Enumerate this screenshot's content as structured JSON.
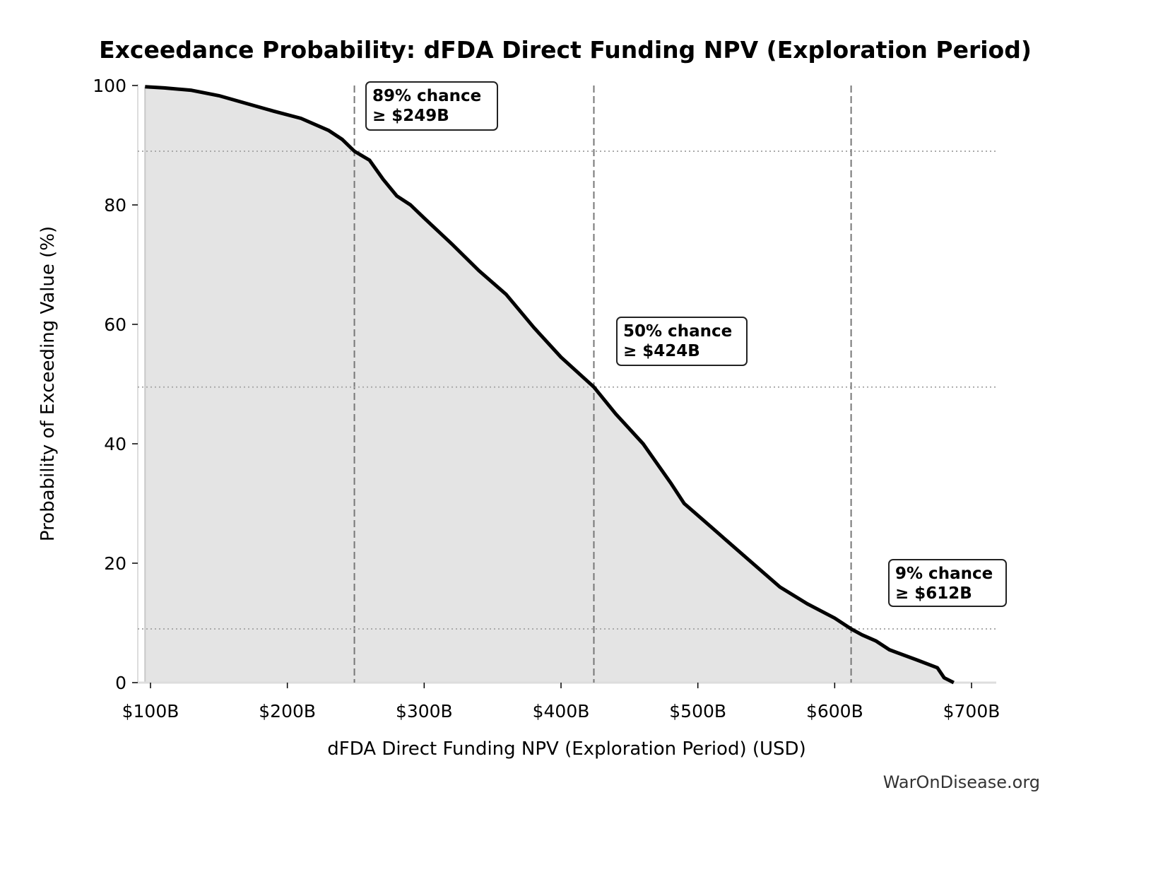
{
  "chart_data": {
    "type": "area",
    "title": "Exceedance Probability: dFDA Direct Funding NPV (Exploration Period)",
    "xlabel": "dFDA Direct Funding NPV (Exploration Period) (USD)",
    "ylabel": "Probability of Exceeding Value (%)",
    "xlim": [
      95,
      718
    ],
    "ylim": [
      0,
      100
    ],
    "x_unit": "billions USD",
    "x_ticks": [
      100,
      200,
      300,
      400,
      500,
      600,
      700
    ],
    "x_tick_labels": [
      "$100B",
      "$200B",
      "$300B",
      "$400B",
      "$500B",
      "$600B",
      "$700B"
    ],
    "y_ticks": [
      0,
      20,
      40,
      60,
      80,
      100
    ],
    "y_tick_labels": [
      "0",
      "20",
      "40",
      "60",
      "80",
      "100"
    ],
    "grid": false,
    "x": [
      96,
      110,
      130,
      150,
      170,
      190,
      210,
      230,
      240,
      249,
      260,
      270,
      280,
      290,
      300,
      320,
      340,
      360,
      380,
      400,
      424,
      440,
      460,
      480,
      490,
      500,
      520,
      540,
      560,
      580,
      600,
      612,
      620,
      630,
      640,
      660,
      675,
      680,
      687
    ],
    "y": [
      99.8,
      99.6,
      99.2,
      98.3,
      97.0,
      95.7,
      94.5,
      92.5,
      91.0,
      89.0,
      87.5,
      84.3,
      81.5,
      80.0,
      77.8,
      73.5,
      69.0,
      65.0,
      59.5,
      54.5,
      49.5,
      45.0,
      40.0,
      33.5,
      30.0,
      28.0,
      24.0,
      20.0,
      16.0,
      13.2,
      10.8,
      9.0,
      8.0,
      7.0,
      5.5,
      3.8,
      2.5,
      0.8,
      0.0
    ],
    "line_color": "#000000",
    "fill_color": "#e4e4e4",
    "reference_lines": [
      {
        "probability": 89,
        "value": 249,
        "label_line1": "89% chance",
        "label_line2": "≥ $249B"
      },
      {
        "probability": 49.5,
        "value": 424,
        "label_line1": "50% chance",
        "label_line2": "≥ $424B"
      },
      {
        "probability": 9,
        "value": 612,
        "label_line1": "9% chance",
        "label_line2": "≥ $612B"
      }
    ]
  },
  "watermark": "WarOnDisease.org"
}
